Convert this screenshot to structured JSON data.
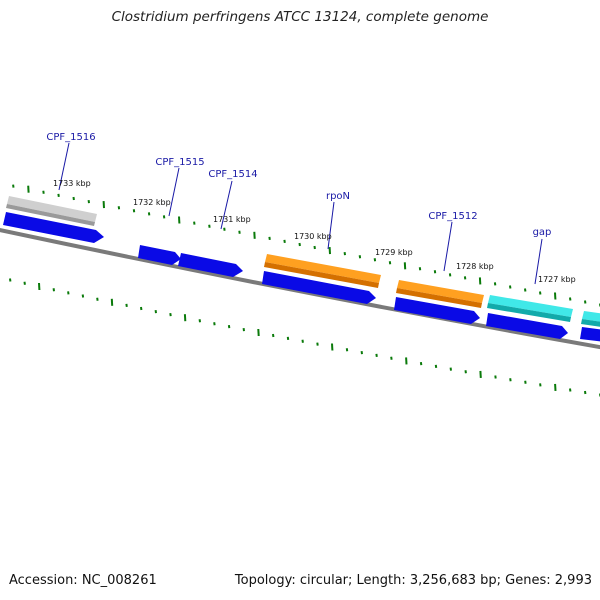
{
  "title": "Clostridium perfringens ATCC 13124, complete genome",
  "footer": {
    "accession": "Accession: NC_008261",
    "summary": "Topology: circular; Length: 3,256,683 bp; Genes: 2,993"
  },
  "colors": {
    "backbone": "#7a7a7a",
    "cds_strand": "#0a0ae6",
    "gene_orange": "#ff8c00",
    "gene_cyan": "#1fd6d6",
    "gene_gray": "#bdbdbd",
    "tick_green": "#0a7a0a",
    "label_blue": "#1a1aa6"
  },
  "gene_labels": [
    {
      "id": "cpf1516",
      "text": "CPF_1516"
    },
    {
      "id": "cpf1515",
      "text": "CPF_1515"
    },
    {
      "id": "cpf1514",
      "text": "CPF_1514"
    },
    {
      "id": "rpon",
      "text": "rpoN"
    },
    {
      "id": "cpf1512",
      "text": "CPF_1512"
    },
    {
      "id": "gap",
      "text": "gap"
    }
  ],
  "kbp_labels": [
    {
      "id": "k1733",
      "text": "1733 kbp"
    },
    {
      "id": "k1732",
      "text": "1732 kbp"
    },
    {
      "id": "k1731",
      "text": "1731 kbp"
    },
    {
      "id": "k1730",
      "text": "1730 kbp"
    },
    {
      "id": "k1729",
      "text": "1729 kbp"
    },
    {
      "id": "k1728",
      "text": "1728 kbp"
    },
    {
      "id": "k1727",
      "text": "1727 kbp"
    }
  ]
}
